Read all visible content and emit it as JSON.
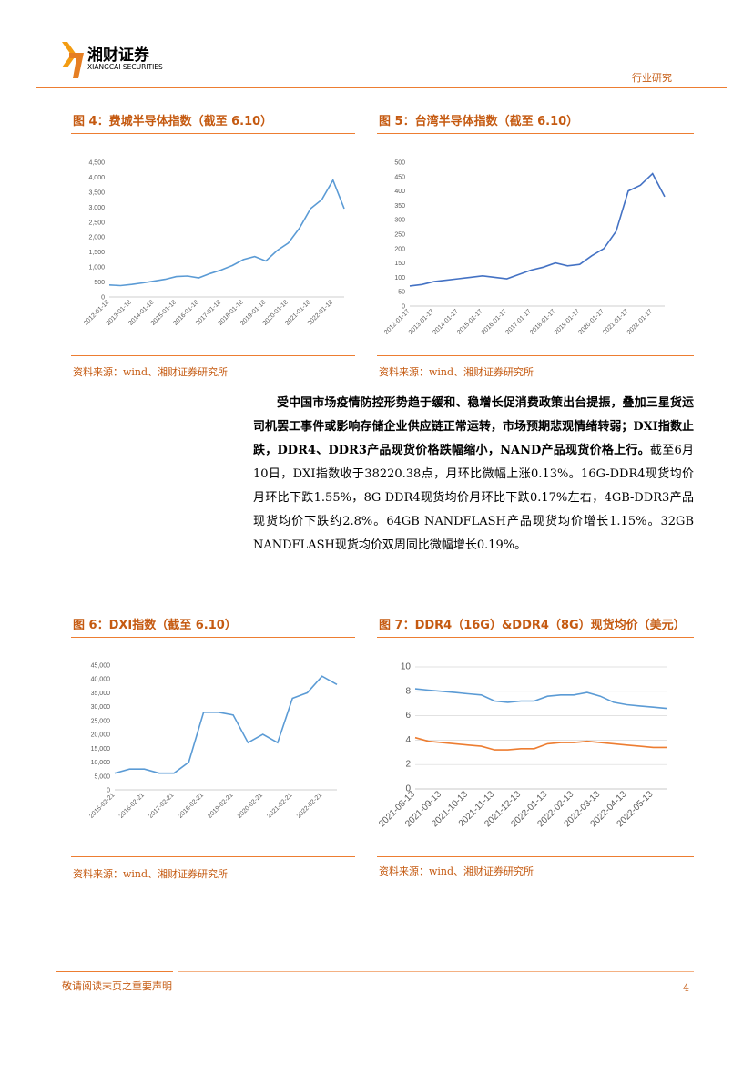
{
  "header": {
    "brand": "湘财证券",
    "brand_en": "XIANGCAI SECURITIES",
    "section": "行业研究"
  },
  "body": {
    "bold": "受中国市场疫情防控形势趋于缓和、稳增长促消费政策出台提振，叠加三星货运司机罢工事件或影响存储企业供应链正常运转，市场预期悲观情绪转弱；DXI指数止跌，DDR4、DDR3产品现货价格跌幅缩小，NAND产品现货价格上行。",
    "text": "截至6月10日，DXI指数收于38220.38点，月环比微幅上涨0.13%。16G-DDR4现货均价月环比下跌1.55%，8G DDR4现货均价月环比下跌0.17%左右，4GB-DDR3产品现货均价下跌约2.8%。64GB NANDFLASH产品现货均价增长1.15%。32GB NANDFLASH现货均价双周同比微幅增长0.19%。"
  },
  "sources": [
    "资料来源：wind、湘财证券研究所",
    "资料来源：wind、湘财证券研究所",
    "资料来源：wind、湘财证券研究所",
    "资料来源：wind、湘财证券研究所"
  ],
  "footer": {
    "disclaimer": "敬请阅读末页之重要声明",
    "page": "4"
  },
  "chart_data": [
    {
      "type": "line",
      "title": "图 4：费城半导体指数（截至 6.10）",
      "categories": [
        "2012-01-18",
        null,
        "2013-01-18",
        null,
        "2014-01-18",
        null,
        "2015-01-18",
        null,
        "2016-01-18",
        null,
        "2017-01-18",
        null,
        "2018-01-18",
        null,
        "2019-01-18",
        null,
        "2020-01-18",
        null,
        "2021-01-18",
        null,
        "2022-01-18",
        null
      ],
      "series": [
        {
          "color": "#5b9bd5",
          "values": [
            400,
            380,
            420,
            470,
            530,
            590,
            680,
            700,
            640,
            780,
            900,
            1050,
            1250,
            1350,
            1200,
            1550,
            1800,
            2300,
            2950,
            3250,
            3900,
            2950
          ]
        }
      ],
      "ylim": [
        0,
        4500
      ],
      "yticks": [
        0,
        500,
        {
          "value": 1000,
          "label": "1,000"
        },
        {
          "value": 1500,
          "label": "1,500"
        },
        {
          "value": 2000,
          "label": "2,000"
        },
        {
          "value": 2500,
          "label": "2,500"
        },
        {
          "value": 3000,
          "label": "3,000"
        },
        {
          "value": 3500,
          "label": "3,500"
        },
        {
          "value": 4000,
          "label": "4,000"
        },
        {
          "value": 4500,
          "label": "4,500"
        }
      ],
      "grid": false
    },
    {
      "type": "line",
      "title": "图 5：台湾半导体指数（截至 6.10）",
      "categories": [
        "2012-01-17",
        null,
        "2013-01-17",
        null,
        "2014-01-17",
        null,
        "2015-01-17",
        null,
        "2016-01-17",
        null,
        "2017-01-17",
        null,
        "2018-01-17",
        null,
        "2019-01-17",
        null,
        "2020-01-17",
        null,
        "2021-01-17",
        null,
        "2022-01-17",
        null
      ],
      "series": [
        {
          "color": "#4472c4",
          "values": [
            70,
            75,
            85,
            90,
            95,
            100,
            105,
            100,
            95,
            110,
            125,
            135,
            150,
            140,
            145,
            175,
            200,
            260,
            400,
            420,
            460,
            380
          ]
        }
      ],
      "ylim": [
        0,
        500
      ],
      "yticks": [
        0,
        50,
        100,
        150,
        200,
        250,
        300,
        350,
        400,
        450,
        500
      ],
      "grid": false
    },
    {
      "type": "line",
      "title": "图 6：DXI指数（截至 6.10）",
      "categories": [
        "2015-02-21",
        null,
        "2016-02-21",
        null,
        "2017-02-21",
        null,
        "2018-02-21",
        null,
        "2019-02-21",
        null,
        "2020-02-21",
        null,
        "2021-02-21",
        null,
        "2022-02-21",
        null
      ],
      "series": [
        {
          "color": "#5b9bd5",
          "values": [
            6000,
            7500,
            7500,
            6000,
            6000,
            10000,
            28000,
            28000,
            27000,
            17000,
            20000,
            17000,
            33000,
            35000,
            41000,
            38000
          ]
        }
      ],
      "ylim": [
        0,
        45000
      ],
      "yticks": [
        0,
        {
          "value": 5000,
          "label": "5,000"
        },
        {
          "value": 10000,
          "label": "10,000"
        },
        {
          "value": 15000,
          "label": "15,000"
        },
        {
          "value": 20000,
          "label": "20,000"
        },
        {
          "value": 25000,
          "label": "25,000"
        },
        {
          "value": 30000,
          "label": "30,000"
        },
        {
          "value": 35000,
          "label": "35,000"
        },
        {
          "value": 40000,
          "label": "40,000"
        },
        {
          "value": 45000,
          "label": "45,000"
        }
      ],
      "grid": false
    },
    {
      "type": "line",
      "title": "图 7：DDR4（16G）&DDR4（8G）现货均价（美元）",
      "categories": [
        "2021-08-13",
        null,
        "2021-09-13",
        null,
        "2021-10-13",
        null,
        "2021-11-13",
        null,
        "2021-12-13",
        null,
        "2022-01-13",
        null,
        "2022-02-13",
        null,
        "2022-03-13",
        null,
        "2022-04-13",
        null,
        "2022-05-13",
        null
      ],
      "series": [
        {
          "color": "#5b9bd5",
          "values": [
            8.2,
            8.1,
            8.0,
            7.9,
            7.8,
            7.7,
            7.2,
            7.1,
            7.2,
            7.2,
            7.6,
            7.7,
            7.7,
            7.9,
            7.6,
            7.1,
            6.9,
            6.8,
            6.7,
            6.6
          ]
        },
        {
          "color": "#ed7d31",
          "values": [
            4.2,
            3.9,
            3.8,
            3.7,
            3.6,
            3.5,
            3.2,
            3.2,
            3.3,
            3.3,
            3.7,
            3.8,
            3.8,
            3.9,
            3.8,
            3.7,
            3.6,
            3.5,
            3.4,
            3.4
          ]
        }
      ],
      "ylim": [
        0,
        10
      ],
      "yticks": [
        0,
        2,
        4,
        6,
        8,
        10
      ],
      "grid": true
    }
  ]
}
